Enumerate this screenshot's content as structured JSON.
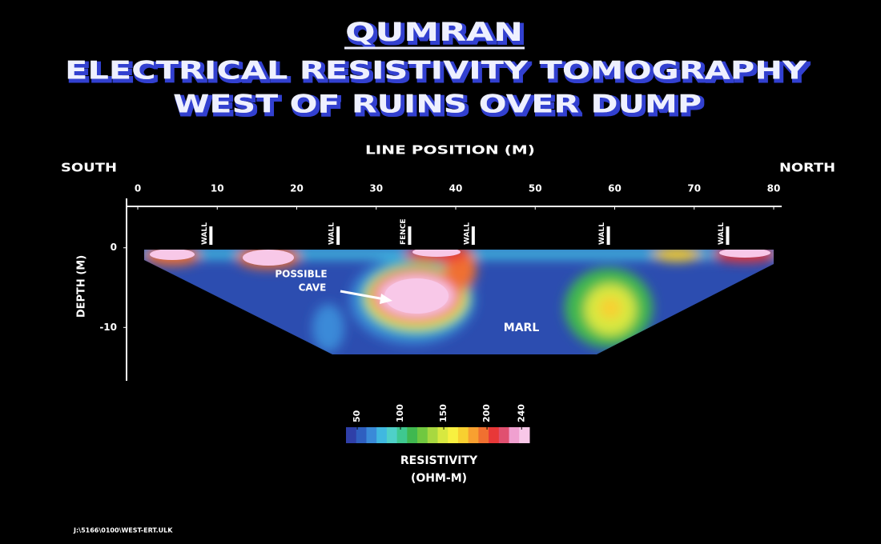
{
  "chart_data": {
    "type": "heatmap",
    "title": "QUMRAN",
    "subtitle": [
      "ELECTRICAL RESISTIVITY TOMOGRAPHY",
      "WEST OF RUINS OVER DUMP"
    ],
    "x_label": "LINE POSITION (M)",
    "y_label": "DEPTH (M)",
    "left_direction": "SOUTH",
    "right_direction": "NORTH",
    "xlim": [
      0,
      80
    ],
    "xticks": [
      0,
      10,
      20,
      30,
      40,
      50,
      60,
      70,
      80
    ],
    "ylim": [
      6,
      -16.5
    ],
    "yticks": [
      0,
      -10
    ],
    "markers": [
      {
        "label": "WALL",
        "x": 9
      },
      {
        "label": "WALL",
        "x": 25
      },
      {
        "label": "FENCE",
        "x": 34
      },
      {
        "label": "WALL",
        "x": 42
      },
      {
        "label": "WALL",
        "x": 59
      },
      {
        "label": "WALL",
        "x": 74
      }
    ],
    "annotations": [
      "POSSIBLE",
      "CAVE",
      "MARL"
    ],
    "colorbar": {
      "label": "RESISTIVITY",
      "unit": "(OHM-M)",
      "lim": [
        37,
        249
      ],
      "ticks": [
        50,
        100,
        150,
        200,
        240
      ],
      "colors": [
        "#2f3fa8",
        "#2f5fc0",
        "#3a8ad8",
        "#40b8e0",
        "#4fd0c8",
        "#3fc890",
        "#40b850",
        "#70c840",
        "#a8d840",
        "#d8e840",
        "#f8f040",
        "#f8d030",
        "#f8a030",
        "#f07030",
        "#e83838",
        "#e05070",
        "#f0a0d0",
        "#f8c8e8"
      ]
    },
    "footer": "J:\\5166\\0100\\WEST-ERT.ULK"
  }
}
